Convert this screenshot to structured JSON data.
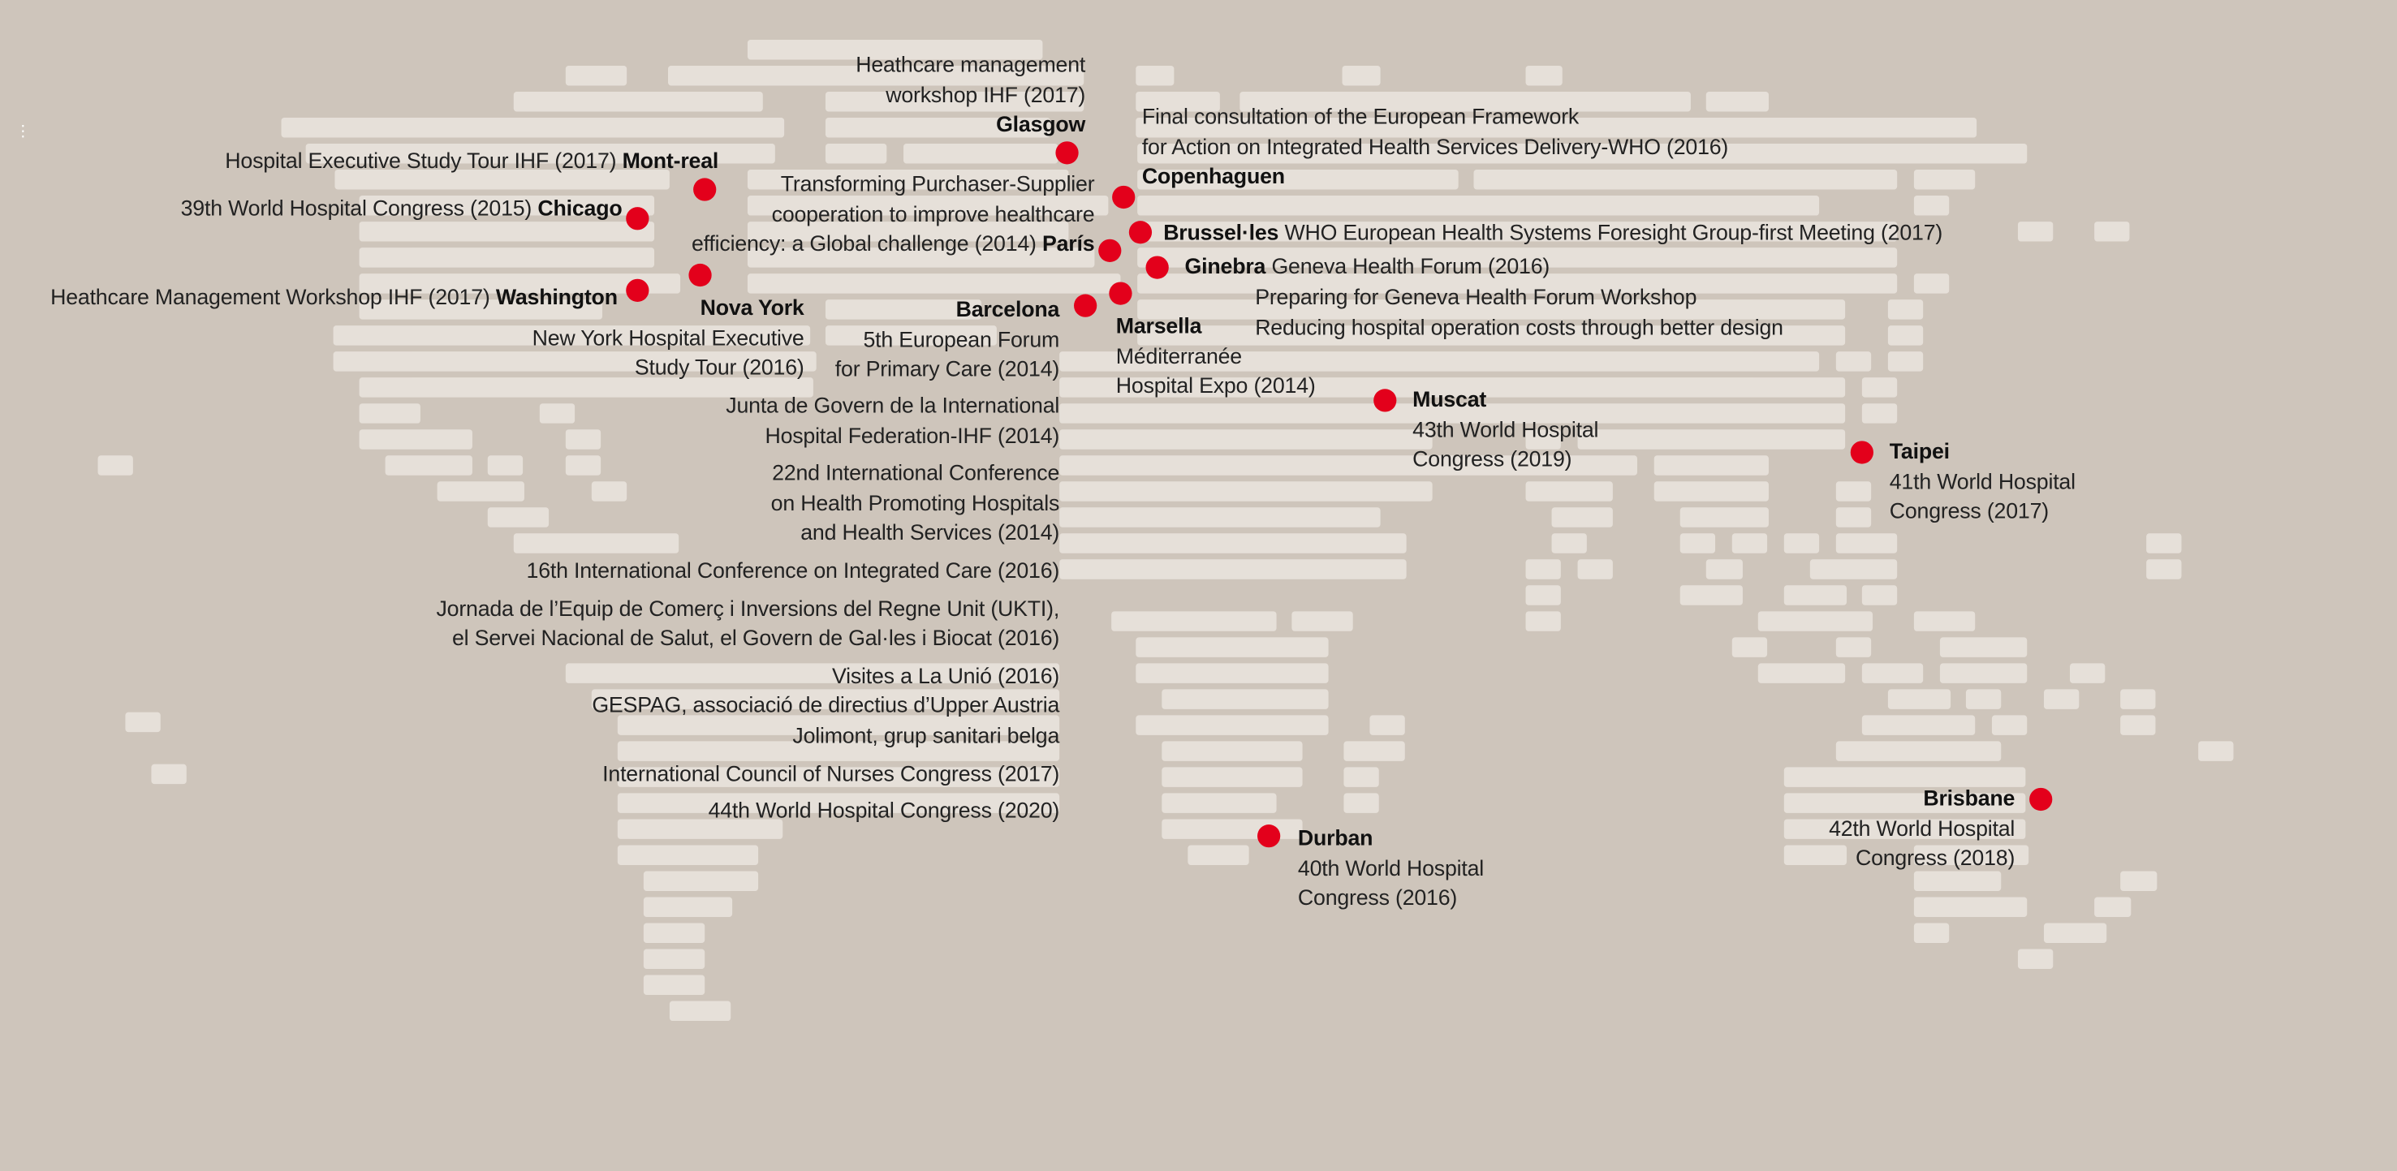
{
  "colors": {
    "background": "#cec5bb",
    "land": "#e6e0d9",
    "marker": "#e3001b",
    "text": "#222222"
  },
  "map": {
    "icon": "dotted-world-map-icon",
    "locations": [
      {
        "city": "Mont-real",
        "events": [
          "Hospital Executive Study Tour IHF (2017)"
        ]
      },
      {
        "city": "Chicago",
        "events": [
          "39th World Hospital Congress (2015)"
        ]
      },
      {
        "city": "Washington",
        "events": [
          "Heathcare Management Workshop IHF (2017)"
        ]
      },
      {
        "city": "Nova York",
        "events": [
          "New York Hospital Executive",
          "Study Tour (2016)"
        ]
      },
      {
        "city": "Glasgow",
        "events": [
          "Heathcare management",
          "workshop IHF (2017)"
        ]
      },
      {
        "city": "Copenhaguen",
        "events": [
          "Final consultation of the European Framework",
          "for Action on Integrated Health Services Delivery-WHO (2016)"
        ]
      },
      {
        "city": "París",
        "events": [
          "Transforming Purchaser-Supplier",
          "cooperation to improve healthcare",
          "efficiency: a Global challenge (2014)"
        ]
      },
      {
        "city": "Brussel·les",
        "events": [
          "WHO European Health Systems Foresight Group-first Meeting (2017)"
        ]
      },
      {
        "city": "Ginebra",
        "events": [
          "Geneva Health Forum (2016)",
          "Preparing for Geneva Health Forum Workshop",
          "Reducing hospital operation costs through better design"
        ]
      },
      {
        "city": "Marsella",
        "events": [
          "Méditerranée",
          "Hospital Expo (2014)"
        ]
      },
      {
        "city": "Barcelona",
        "events": [
          "5th European Forum",
          "for Primary Care (2014)",
          "Junta de Govern de la International",
          "Hospital Federation-IHF (2014)",
          "22nd International Conference",
          "on Health Promoting Hospitals",
          "and Health Services (2014)",
          "16th International Conference on Integrated Care (2016)",
          "Jornada de l’Equip de Comerç i Inversions del Regne Unit (UKTI),",
          "el Servei Nacional de Salut, el Govern de Gal·les i Biocat (2016)",
          "Visites a La Unió (2016)",
          "GESPAG, associació de directius d’Upper Austria",
          "Jolimont, grup sanitari belga",
          "International Council of Nurses Congress (2017)",
          "44th World Hospital Congress (2020)"
        ]
      },
      {
        "city": "Muscat",
        "events": [
          "43th World Hospital",
          "Congress (2019)"
        ]
      },
      {
        "city": "Taipei",
        "events": [
          "41th World Hospital",
          "Congress (2017)"
        ]
      },
      {
        "city": "Durban",
        "events": [
          "40th World Hospital",
          "Congress (2016)"
        ]
      },
      {
        "city": "Brisbane",
        "events": [
          "42th World Hospital",
          "Congress (2018)"
        ]
      }
    ]
  }
}
